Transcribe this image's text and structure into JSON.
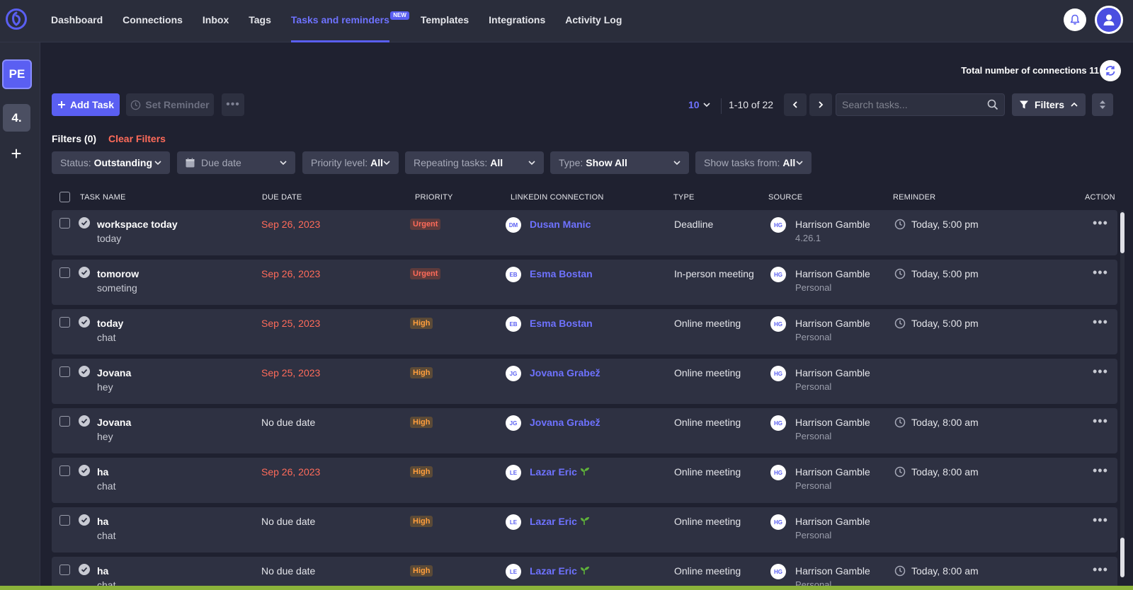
{
  "nav": {
    "links": [
      {
        "label": "Dashboard"
      },
      {
        "label": "Connections"
      },
      {
        "label": "Inbox"
      },
      {
        "label": "Tags"
      },
      {
        "label": "Tasks and reminders",
        "badge": "NEW",
        "active": true
      },
      {
        "label": "Templates"
      },
      {
        "label": "Integrations"
      },
      {
        "label": "Activity Log"
      }
    ]
  },
  "sidebar": {
    "workspaces": [
      "PE",
      "4."
    ],
    "add_label": "+"
  },
  "header": {
    "total_connections_label": "Total number of connections 11"
  },
  "toolbar": {
    "add_task": "Add Task",
    "set_reminder": "Set Reminder",
    "per_page": "10",
    "range": "1-10 of 22",
    "search_placeholder": "Search tasks...",
    "filters": "Filters"
  },
  "filters": {
    "count_label": "Filters (0)",
    "clear_label": "Clear Filters",
    "status": {
      "label": "Status:",
      "value": "Outstanding"
    },
    "due_date": {
      "label": "Due date"
    },
    "priority": {
      "label": "Priority level:",
      "value": "All"
    },
    "repeating": {
      "label": "Repeating tasks:",
      "value": "All"
    },
    "type": {
      "label": "Type:",
      "value": "Show All"
    },
    "show_from": {
      "label": "Show tasks from:",
      "value": "All"
    }
  },
  "table": {
    "columns": [
      "TASK NAME",
      "DUE DATE",
      "PRIORITY",
      "LINKEDIN CONNECTION",
      "TYPE",
      "SOURCE",
      "REMINDER",
      "ACTION"
    ],
    "rows": [
      {
        "name": "workspace today",
        "sub": "today",
        "due": "Sep 26, 2023",
        "overdue": true,
        "priority": "Urgent",
        "conn_initials": "DM",
        "conn": "Dusan Manic",
        "sprout": false,
        "type": "Deadline",
        "src_initials": "HG",
        "source": "Harrison Gamble",
        "source_sub": "4.26.1",
        "reminder": "Today, 5:00 pm"
      },
      {
        "name": "tomorow",
        "sub": "someting",
        "due": "Sep 26, 2023",
        "overdue": true,
        "priority": "Urgent",
        "conn_initials": "EB",
        "conn": "Esma Bostan",
        "sprout": false,
        "type": "In-person meeting",
        "src_initials": "HG",
        "source": "Harrison Gamble",
        "source_sub": "Personal",
        "reminder": "Today, 5:00 pm"
      },
      {
        "name": "today",
        "sub": "chat",
        "due": "Sep 25, 2023",
        "overdue": true,
        "priority": "High",
        "conn_initials": "EB",
        "conn": "Esma Bostan",
        "sprout": false,
        "type": "Online meeting",
        "src_initials": "HG",
        "source": "Harrison Gamble",
        "source_sub": "Personal",
        "reminder": "Today, 5:00 pm"
      },
      {
        "name": "Jovana",
        "sub": "hey",
        "due": "Sep 25, 2023",
        "overdue": true,
        "priority": "High",
        "conn_initials": "JG",
        "conn": "Jovana Grabež",
        "sprout": false,
        "type": "Online meeting",
        "src_initials": "HG",
        "source": "Harrison Gamble",
        "source_sub": "Personal",
        "reminder": ""
      },
      {
        "name": "Jovana",
        "sub": "hey",
        "due": "No due date",
        "overdue": false,
        "priority": "High",
        "conn_initials": "JG",
        "conn": "Jovana Grabež",
        "sprout": false,
        "type": "Online meeting",
        "src_initials": "HG",
        "source": "Harrison Gamble",
        "source_sub": "Personal",
        "reminder": "Today, 8:00 am"
      },
      {
        "name": "ha",
        "sub": "chat",
        "due": "Sep 26, 2023",
        "overdue": true,
        "priority": "High",
        "conn_initials": "LE",
        "conn": "Lazar Eric",
        "sprout": true,
        "type": "Online meeting",
        "src_initials": "HG",
        "source": "Harrison Gamble",
        "source_sub": "Personal",
        "reminder": "Today, 8:00 am"
      },
      {
        "name": "ha",
        "sub": "chat",
        "due": "No due date",
        "overdue": false,
        "priority": "High",
        "conn_initials": "LE",
        "conn": "Lazar Eric",
        "sprout": true,
        "type": "Online meeting",
        "src_initials": "HG",
        "source": "Harrison Gamble",
        "source_sub": "Personal",
        "reminder": ""
      },
      {
        "name": "ha",
        "sub": "chat",
        "due": "No due date",
        "overdue": false,
        "priority": "High",
        "conn_initials": "LE",
        "conn": "Lazar Eric",
        "sprout": true,
        "type": "Online meeting",
        "src_initials": "HG",
        "source": "Harrison Gamble",
        "source_sub": "Personal",
        "reminder": "Today, 8:00 am"
      }
    ]
  },
  "colors": {
    "accent": "#5a5ff2",
    "overdue": "#ff6b5a",
    "priority_high": "#ff9e3d"
  }
}
